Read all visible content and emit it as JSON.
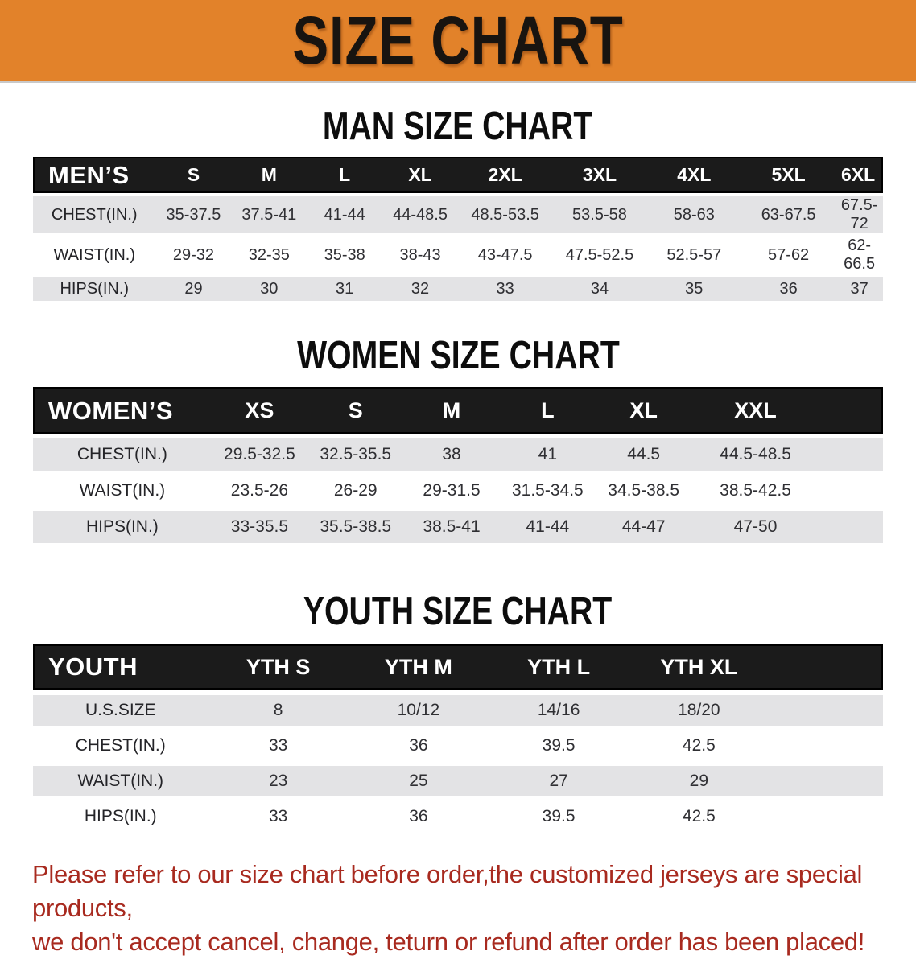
{
  "banner": {
    "title": "SIZE CHART"
  },
  "colors": {
    "banner_bg": "#e2822a",
    "header_bar": "#1b1b1b",
    "stripe_row": "#e3e3e5",
    "notice_text": "#a82a1f"
  },
  "sections": [
    {
      "id": "men",
      "heading": "MAN SIZE CHART",
      "label": "MEN’S",
      "sizes": [
        "S",
        "M",
        "L",
        "XL",
        "2XL",
        "3XL",
        "4XL",
        "5XL",
        "6XL"
      ],
      "rows": [
        {
          "label": "CHEST(IN.)",
          "values": [
            "35-37.5",
            "37.5-41",
            "41-44",
            "44-48.5",
            "48.5-53.5",
            "53.5-58",
            "58-63",
            "63-67.5",
            "67.5-72"
          ]
        },
        {
          "label": "WAIST(IN.)",
          "values": [
            "29-32",
            "32-35",
            "35-38",
            "38-43",
            "43-47.5",
            "47.5-52.5",
            "52.5-57",
            "57-62",
            "62-66.5"
          ]
        },
        {
          "label": "HIPS(IN.)",
          "values": [
            "29",
            "30",
            "31",
            "32",
            "33",
            "34",
            "35",
            "36",
            "37"
          ]
        }
      ]
    },
    {
      "id": "women",
      "heading": "WOMEN SIZE CHART",
      "label": "WOMEN’S",
      "sizes": [
        "XS",
        "S",
        "M",
        "L",
        "XL",
        "XXL"
      ],
      "rows": [
        {
          "label": "CHEST(IN.)",
          "values": [
            "29.5-32.5",
            "32.5-35.5",
            "38",
            "41",
            "44.5",
            "44.5-48.5"
          ]
        },
        {
          "label": "WAIST(IN.)",
          "values": [
            "23.5-26",
            "26-29",
            "29-31.5",
            "31.5-34.5",
            "34.5-38.5",
            "38.5-42.5"
          ]
        },
        {
          "label": "HIPS(IN.)",
          "values": [
            "33-35.5",
            "35.5-38.5",
            "38.5-41",
            "41-44",
            "44-47",
            "47-50"
          ]
        }
      ]
    },
    {
      "id": "youth",
      "heading": "YOUTH SIZE CHART",
      "label": "YOUTH",
      "sizes": [
        "YTH S",
        "YTH M",
        "YTH L",
        "YTH XL"
      ],
      "rows": [
        {
          "label": "U.S.SIZE",
          "values": [
            "8",
            "10/12",
            "14/16",
            "18/20"
          ]
        },
        {
          "label": "CHEST(IN.)",
          "values": [
            "33",
            "36",
            "39.5",
            "42.5"
          ]
        },
        {
          "label": "WAIST(IN.)",
          "values": [
            "23",
            "25",
            "27",
            "29"
          ]
        },
        {
          "label": "HIPS(IN.)",
          "values": [
            "33",
            "36",
            "39.5",
            "42.5"
          ]
        }
      ]
    }
  ],
  "footer": {
    "line1": "Please refer to our size chart before order,the customized jerseys are special products,",
    "line2": "we don't accept cancel, change, teturn or refund after order has been placed!"
  }
}
